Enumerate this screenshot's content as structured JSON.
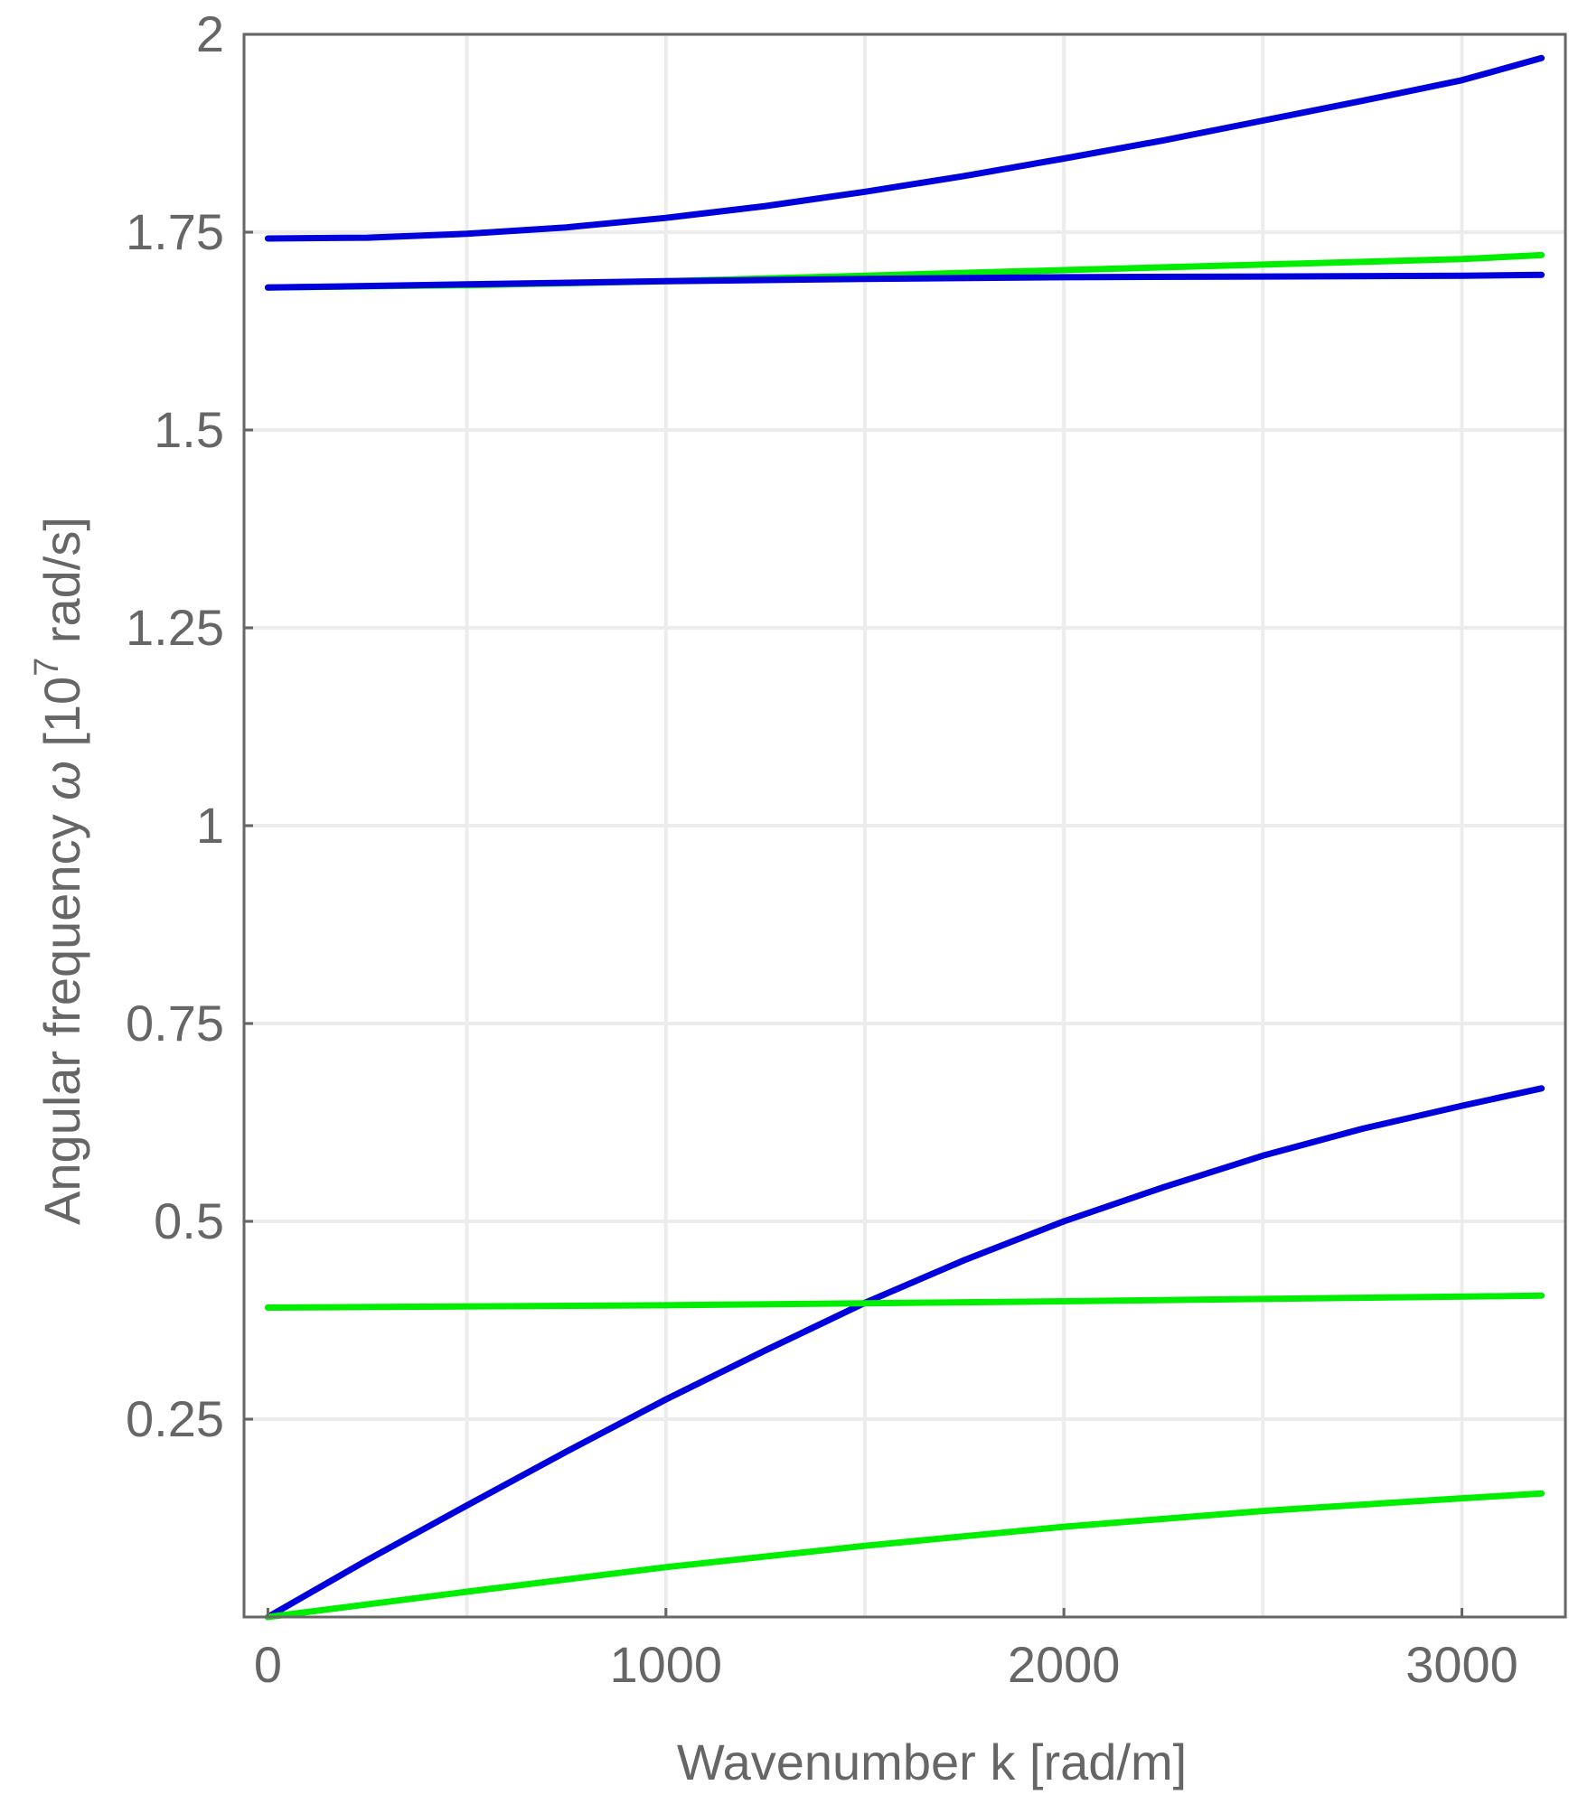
{
  "chart_data": {
    "type": "line",
    "title": "",
    "xlabel": "Wavenumber k [rad/m]",
    "ylabel": {
      "prefix": "Angular frequency ",
      "symbol": "ω",
      "unit_open": " [10",
      "unit_exponent": "7",
      "unit_close": " rad/s]"
    },
    "xlim": [
      -60,
      3260
    ],
    "ylim": [
      0,
      2
    ],
    "x_ticks": [
      0,
      1000,
      2000,
      3000
    ],
    "x_tick_labels": [
      "0",
      "1000",
      "2000",
      "3000"
    ],
    "y_ticks": [
      0.25,
      0.5,
      0.75,
      1,
      1.25,
      1.5,
      1.75,
      2
    ],
    "y_tick_labels": [
      "0.25",
      "0.5",
      "0.75",
      "1",
      "1.25",
      "1.5",
      "1.75",
      "2"
    ],
    "x_grid": [
      500,
      1000,
      1500,
      2000,
      2500,
      3000
    ],
    "y_grid": [
      0.25,
      0.5,
      0.75,
      1,
      1.25,
      1.5,
      1.75,
      2
    ],
    "grid": true,
    "legend": "none",
    "colors": {
      "blue": "#0000dd",
      "green": "#00ee00",
      "axis": "#666666",
      "grid": "#ececec"
    },
    "series": [
      {
        "color": "#0000dd",
        "x": [
          0,
          250,
          500,
          750,
          1000,
          1250,
          1500,
          1750,
          2000,
          2250,
          2500,
          2750,
          3000,
          3200
        ],
        "y": [
          1.742,
          1.743,
          1.748,
          1.756,
          1.768,
          1.783,
          1.801,
          1.821,
          1.843,
          1.866,
          1.891,
          1.916,
          1.942,
          1.97
        ]
      },
      {
        "color": "#00ee00",
        "x": [
          0,
          500,
          1000,
          1500,
          2000,
          2500,
          3000,
          3200
        ],
        "y": [
          1.68,
          1.683,
          1.688,
          1.695,
          1.702,
          1.709,
          1.716,
          1.721
        ]
      },
      {
        "color": "#0000dd",
        "x": [
          0,
          500,
          1000,
          1500,
          2000,
          2500,
          3000,
          3200
        ],
        "y": [
          1.68,
          1.684,
          1.688,
          1.691,
          1.693,
          1.694,
          1.695,
          1.696
        ]
      },
      {
        "color": "#0000dd",
        "x": [
          0,
          250,
          500,
          750,
          1000,
          1250,
          1500,
          1750,
          2000,
          2250,
          2500,
          2750,
          3000,
          3200
        ],
        "y": [
          0.0,
          0.072,
          0.141,
          0.209,
          0.275,
          0.337,
          0.397,
          0.451,
          0.5,
          0.543,
          0.583,
          0.617,
          0.646,
          0.668
        ]
      },
      {
        "color": "#00ee00",
        "x": [
          0,
          1000,
          2000,
          3200
        ],
        "y": [
          0.391,
          0.394,
          0.399,
          0.406
        ]
      },
      {
        "color": "#00ee00",
        "x": [
          0,
          500,
          1000,
          1500,
          2000,
          2500,
          3000,
          3200
        ],
        "y": [
          0.0,
          0.032,
          0.063,
          0.09,
          0.114,
          0.134,
          0.15,
          0.156
        ]
      }
    ]
  }
}
